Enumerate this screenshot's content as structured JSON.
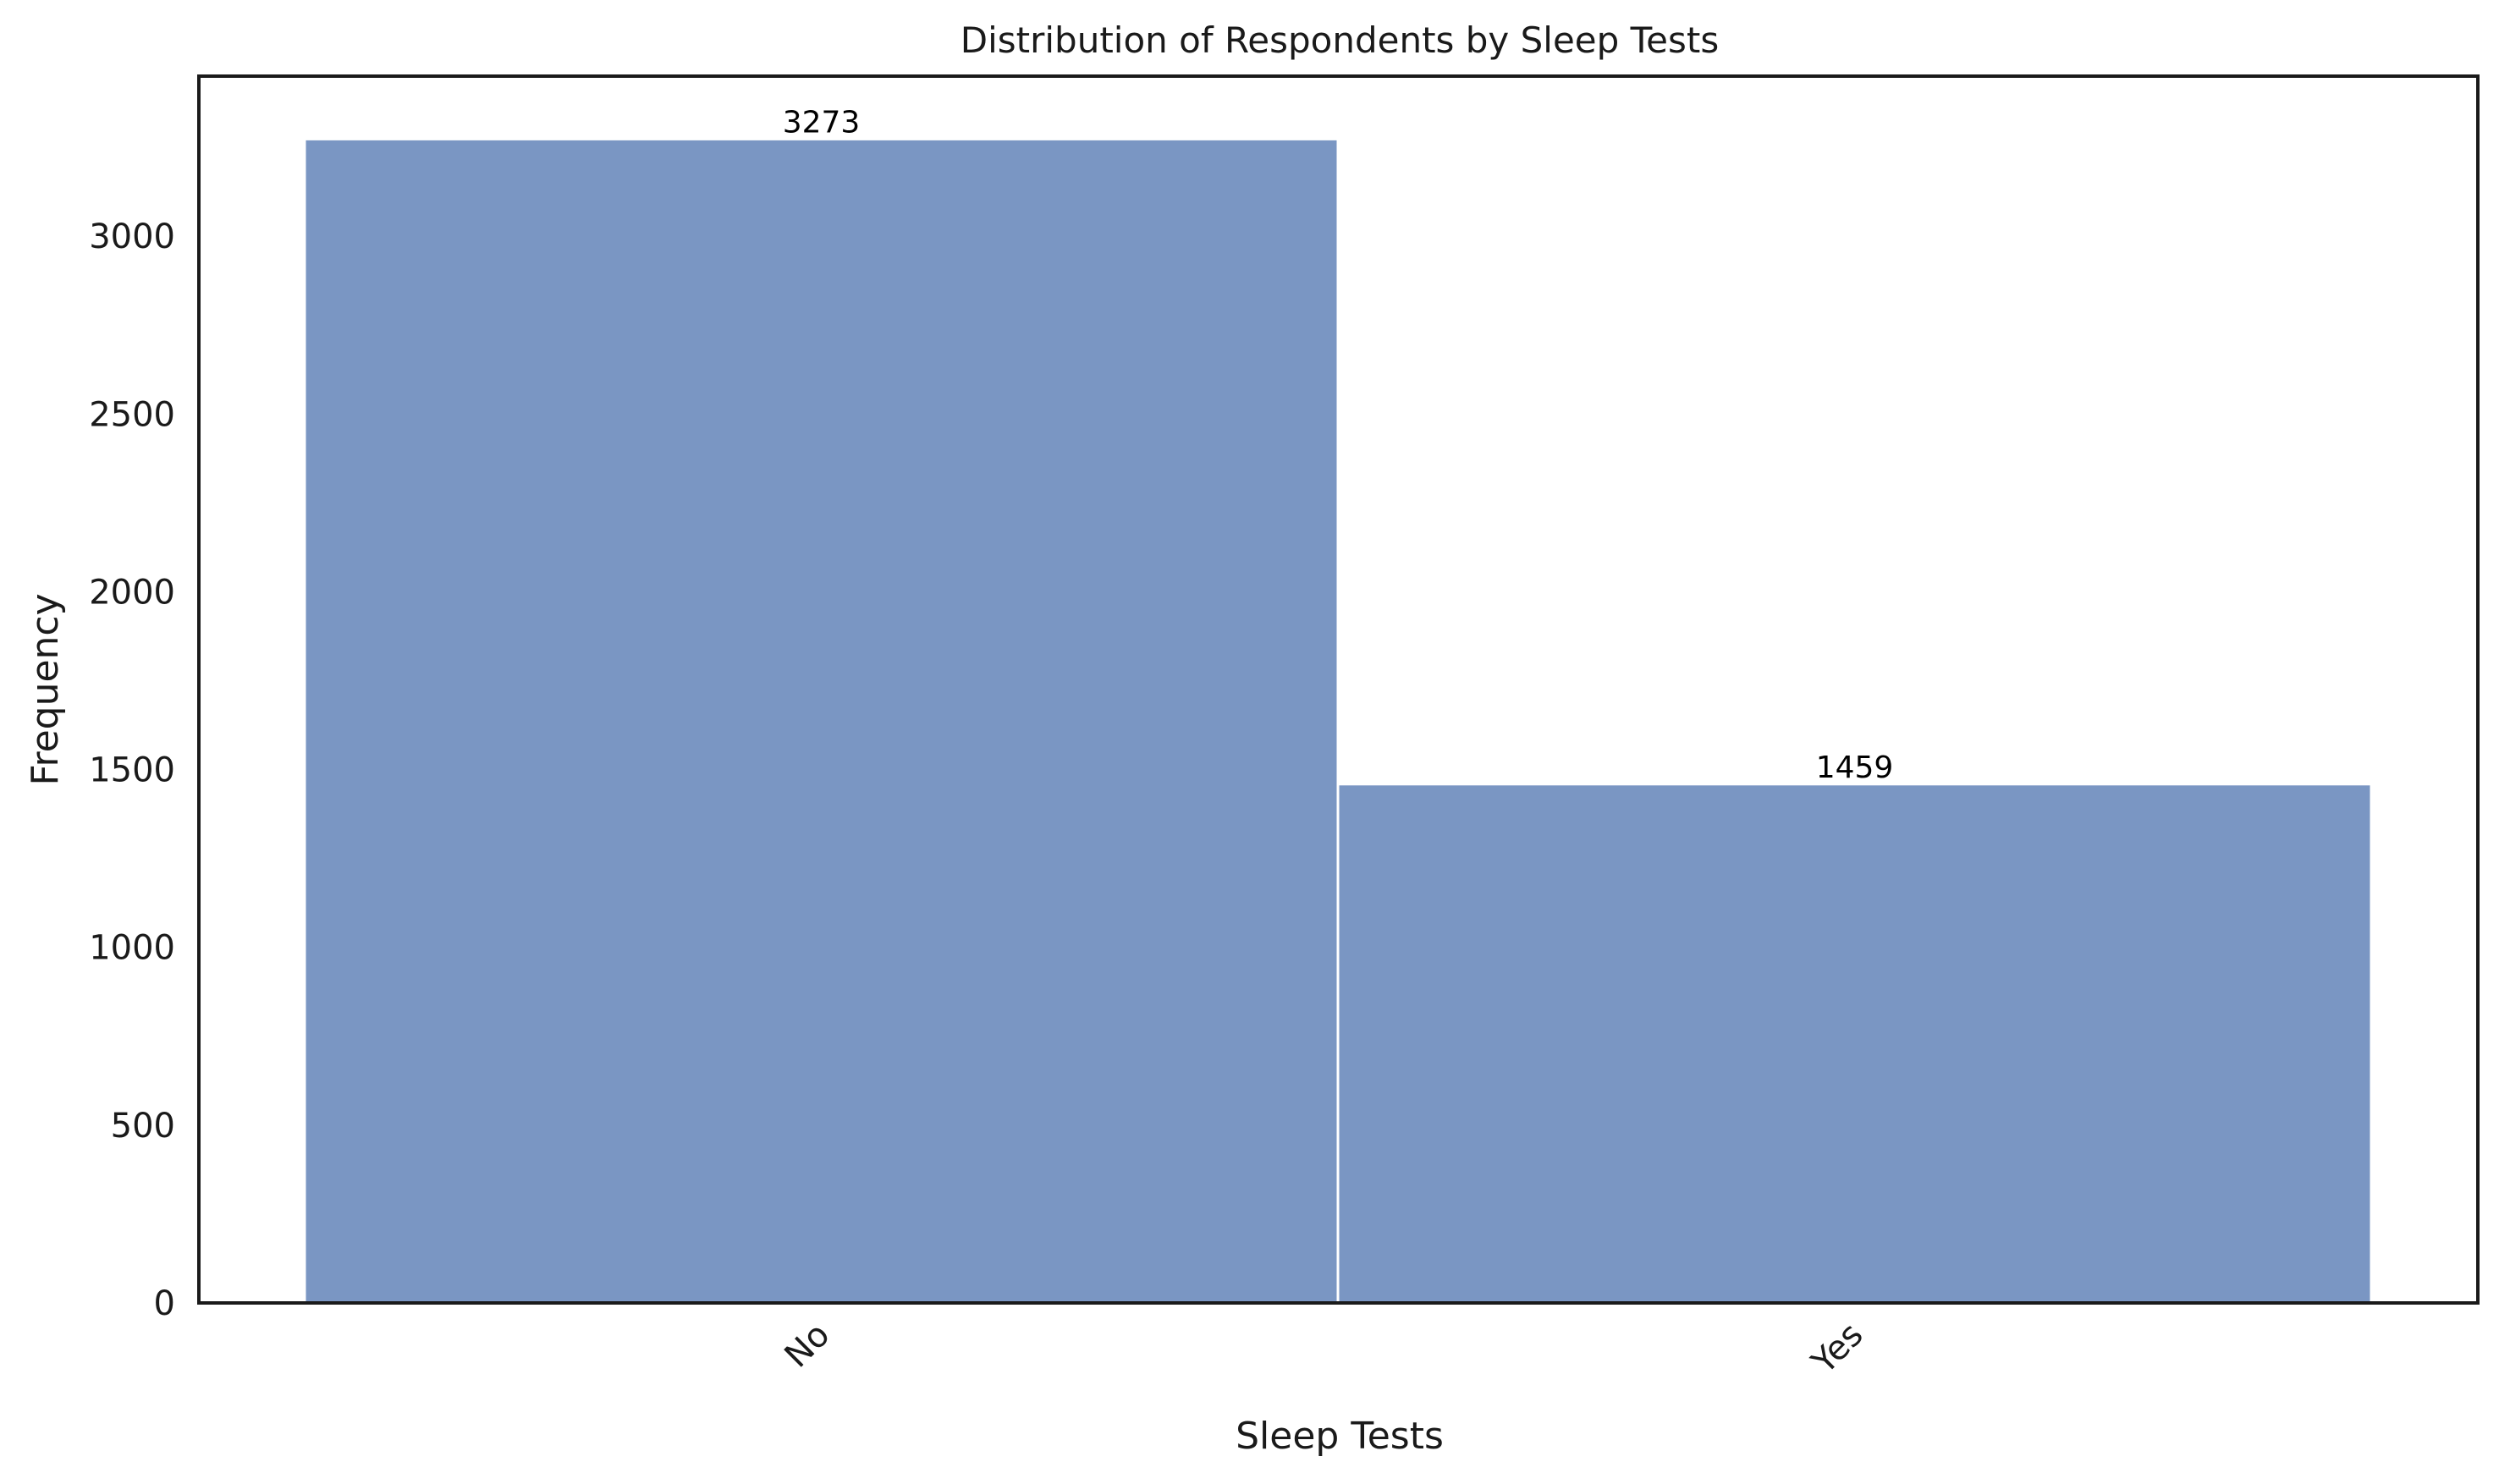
{
  "chart_data": {
    "type": "bar",
    "title": "Distribution of Respondents by Sleep Tests",
    "xlabel": "Sleep Tests",
    "ylabel": "Frequency",
    "categories": [
      "No",
      "Yes"
    ],
    "values": [
      3273,
      1459
    ],
    "data_labels": [
      "3273",
      "1459"
    ],
    "ylim": [
      0,
      3450
    ],
    "yticks": [
      0,
      500,
      1000,
      1500,
      2000,
      2500,
      3000
    ],
    "ytick_labels": [
      "0",
      "500",
      "1000",
      "1500",
      "2000",
      "2500",
      "3000"
    ],
    "grid": false,
    "legend": "none",
    "bar_color": "#7a96c3",
    "xtick_rotation": "45 degrees"
  }
}
